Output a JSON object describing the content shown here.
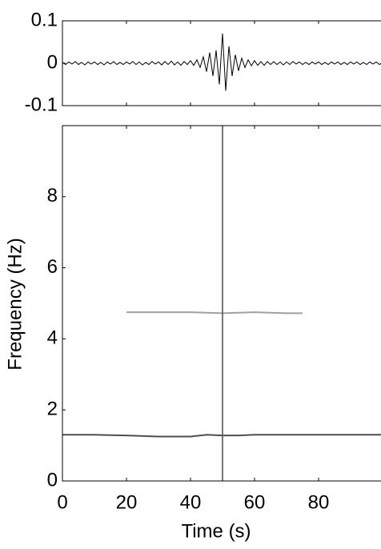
{
  "chart_data": [
    {
      "type": "line",
      "xlim": [
        0,
        100
      ],
      "ylim": [
        -0.1,
        0.1
      ],
      "yticks": [
        0.1,
        0,
        -0.1
      ],
      "series": [
        {
          "color": "#000000",
          "x": [
            0,
            1,
            2,
            3,
            4,
            5,
            6,
            7,
            8,
            9,
            10,
            11,
            12,
            13,
            14,
            15,
            16,
            17,
            18,
            19,
            20,
            21,
            22,
            23,
            24,
            25,
            26,
            27,
            28,
            29,
            30,
            31,
            32,
            33,
            34,
            35,
            36,
            37,
            38,
            39,
            40,
            41,
            42,
            43,
            44,
            45,
            46,
            47,
            48,
            49,
            50,
            51,
            52,
            53,
            54,
            55,
            56,
            57,
            58,
            59,
            60,
            61,
            62,
            63,
            64,
            65,
            66,
            67,
            68,
            69,
            70,
            71,
            72,
            73,
            74,
            75,
            76,
            77,
            78,
            79,
            80,
            81,
            82,
            83,
            84,
            85,
            86,
            87,
            88,
            89,
            90,
            91,
            92,
            93,
            94,
            95,
            96,
            97,
            98,
            99,
            100
          ],
          "values": [
            0.002,
            -0.003,
            0.003,
            -0.002,
            0.004,
            -0.003,
            0.002,
            -0.004,
            0.003,
            -0.002,
            0.003,
            -0.003,
            0.002,
            -0.004,
            0.003,
            -0.002,
            0.004,
            -0.003,
            0.002,
            -0.003,
            0.003,
            -0.002,
            0.004,
            -0.003,
            0.003,
            -0.004,
            0.002,
            -0.003,
            0.004,
            -0.002,
            0.003,
            -0.004,
            0.004,
            -0.003,
            0.005,
            -0.004,
            0.003,
            -0.005,
            0.004,
            -0.003,
            0.006,
            -0.005,
            0.008,
            -0.01,
            0.015,
            -0.02,
            0.025,
            -0.03,
            0.03,
            -0.05,
            0.07,
            -0.065,
            0.04,
            -0.03,
            0.02,
            -0.018,
            0.012,
            -0.01,
            0.008,
            -0.006,
            0.006,
            -0.005,
            0.004,
            -0.005,
            0.004,
            -0.003,
            0.004,
            -0.003,
            0.003,
            -0.004,
            0.003,
            -0.003,
            0.004,
            -0.002,
            0.003,
            -0.003,
            0.002,
            -0.003,
            0.003,
            -0.002,
            0.003,
            -0.003,
            0.002,
            -0.003,
            0.003,
            -0.002,
            0.003,
            -0.003,
            0.002,
            -0.003,
            0.003,
            -0.002,
            0.003,
            -0.003,
            0.002,
            -0.003,
            0.003,
            -0.002,
            0.003,
            -0.003,
            0.002
          ]
        }
      ]
    },
    {
      "type": "spectrogram",
      "x_label": "Time (s)",
      "y_label": "Frequency (Hz)",
      "xlim": [
        0,
        100
      ],
      "ylim": [
        0,
        10
      ],
      "xticks": [
        0,
        20,
        40,
        60,
        80
      ],
      "yticks": [
        0,
        2,
        4,
        6,
        8
      ],
      "series": [
        {
          "color": "#222222",
          "x": [
            0,
            10,
            20,
            30,
            40,
            45,
            50,
            55,
            60,
            70,
            80,
            90,
            100
          ],
          "values": [
            1.3,
            1.3,
            1.28,
            1.25,
            1.25,
            1.3,
            1.28,
            1.28,
            1.3,
            1.3,
            1.3,
            1.3,
            1.3
          ]
        },
        {
          "color": "#888888",
          "x": [
            20,
            30,
            40,
            50,
            60,
            70,
            75
          ],
          "values": [
            4.75,
            4.75,
            4.75,
            4.72,
            4.75,
            4.72,
            4.72
          ]
        },
        {
          "color": "#555555",
          "x": [
            50,
            50
          ],
          "values": [
            0,
            10
          ]
        }
      ]
    }
  ]
}
